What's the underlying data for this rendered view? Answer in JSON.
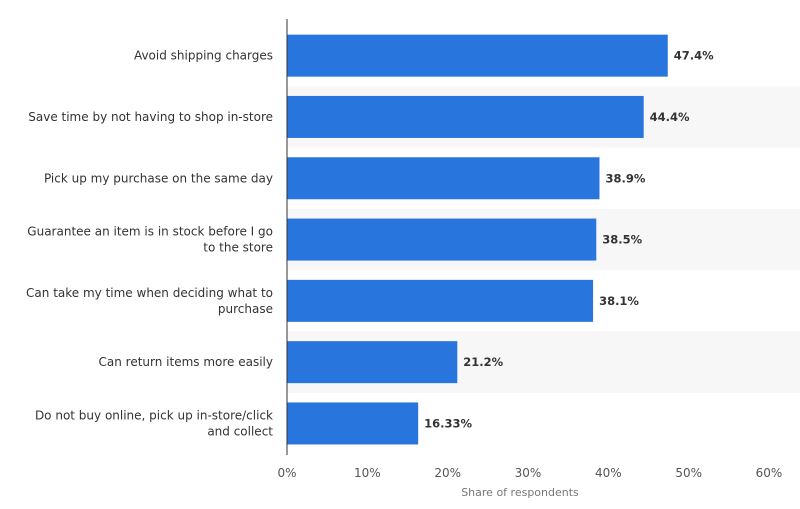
{
  "chart_data": {
    "type": "bar",
    "orientation": "horizontal",
    "categories": [
      [
        "Avoid shipping charges"
      ],
      [
        "Save time by not having to shop in-store"
      ],
      [
        "Pick up my purchase on the same day"
      ],
      [
        "Guarantee an item is in stock before I go",
        "to the store"
      ],
      [
        "Can take my time when deciding what to",
        "purchase"
      ],
      [
        "Can return items more easily"
      ],
      [
        "Do not buy online, pick up in-store/click",
        "and collect"
      ]
    ],
    "values": [
      47.4,
      44.4,
      38.9,
      38.5,
      38.1,
      21.2,
      16.33
    ],
    "value_labels": [
      "47.4%",
      "44.4%",
      "38.9%",
      "38.5%",
      "38.1%",
      "21.2%",
      "16.33%"
    ],
    "x_ticks": [
      0,
      10,
      20,
      30,
      40,
      50,
      60
    ],
    "x_tick_labels": [
      "0%",
      "10%",
      "20%",
      "30%",
      "40%",
      "50%",
      "60%"
    ],
    "xlim": [
      0,
      60
    ],
    "xlabel": "Share of respondents",
    "ylabel": "",
    "title": "",
    "grid": false,
    "bar_color": "#2876dd",
    "band_color": "#f7f7f7",
    "axis_color": "#333333"
  }
}
